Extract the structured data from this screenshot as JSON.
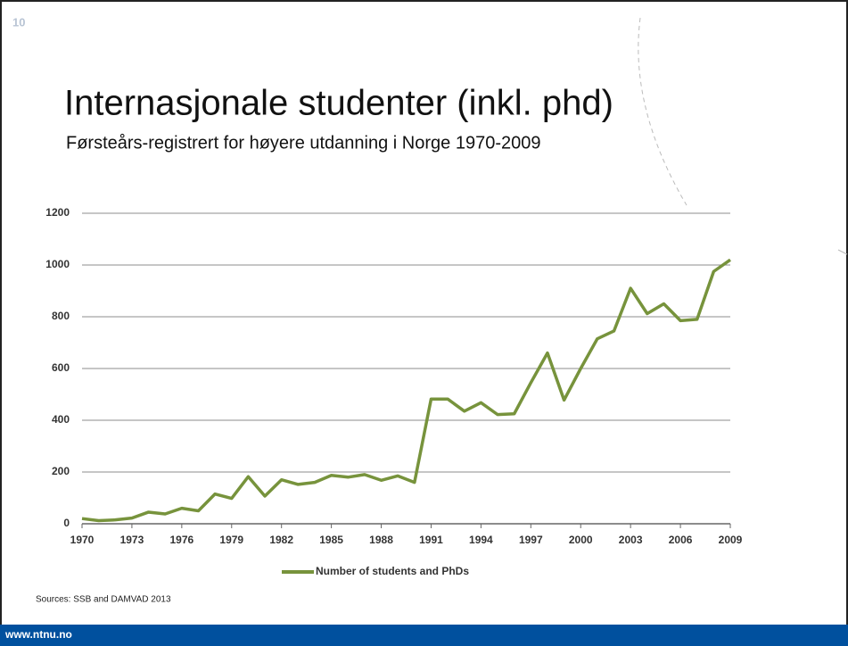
{
  "slide_number": "10",
  "title": "Internasjonale studenter (inkl. phd)",
  "subtitle": "Førsteårs-registrert for høyere utdanning i Norge 1970-2009",
  "chart_data": {
    "type": "line",
    "x": [
      1970,
      1971,
      1972,
      1973,
      1974,
      1975,
      1976,
      1977,
      1978,
      1979,
      1980,
      1981,
      1982,
      1983,
      1984,
      1985,
      1986,
      1987,
      1988,
      1989,
      1990,
      1991,
      1992,
      1993,
      1994,
      1995,
      1996,
      1997,
      1998,
      1999,
      2000,
      2001,
      2002,
      2003,
      2004,
      2005,
      2006,
      2007,
      2008,
      2009
    ],
    "series": [
      {
        "name": "Number of students and PhDs",
        "color": "#77933c",
        "values": [
          20,
          12,
          15,
          22,
          45,
          38,
          60,
          50,
          115,
          98,
          182,
          107,
          170,
          152,
          160,
          187,
          180,
          190,
          168,
          185,
          160,
          482,
          482,
          435,
          468,
          422,
          425,
          545,
          660,
          478,
          600,
          715,
          745,
          910,
          812,
          850,
          785,
          790,
          975,
          1020
        ]
      }
    ],
    "xlim": [
      1970,
      2009
    ],
    "xticks": [
      1970,
      1973,
      1976,
      1979,
      1982,
      1985,
      1988,
      1991,
      1994,
      1997,
      2000,
      2003,
      2006,
      2009
    ],
    "ylim": [
      0,
      1200
    ],
    "yticks": [
      0,
      200,
      400,
      600,
      800,
      1000,
      1200
    ],
    "grid": true,
    "legend": "bottom"
  },
  "source": "Sources: SSB and DAMVAD 2013",
  "footer": "www.ntnu.no"
}
